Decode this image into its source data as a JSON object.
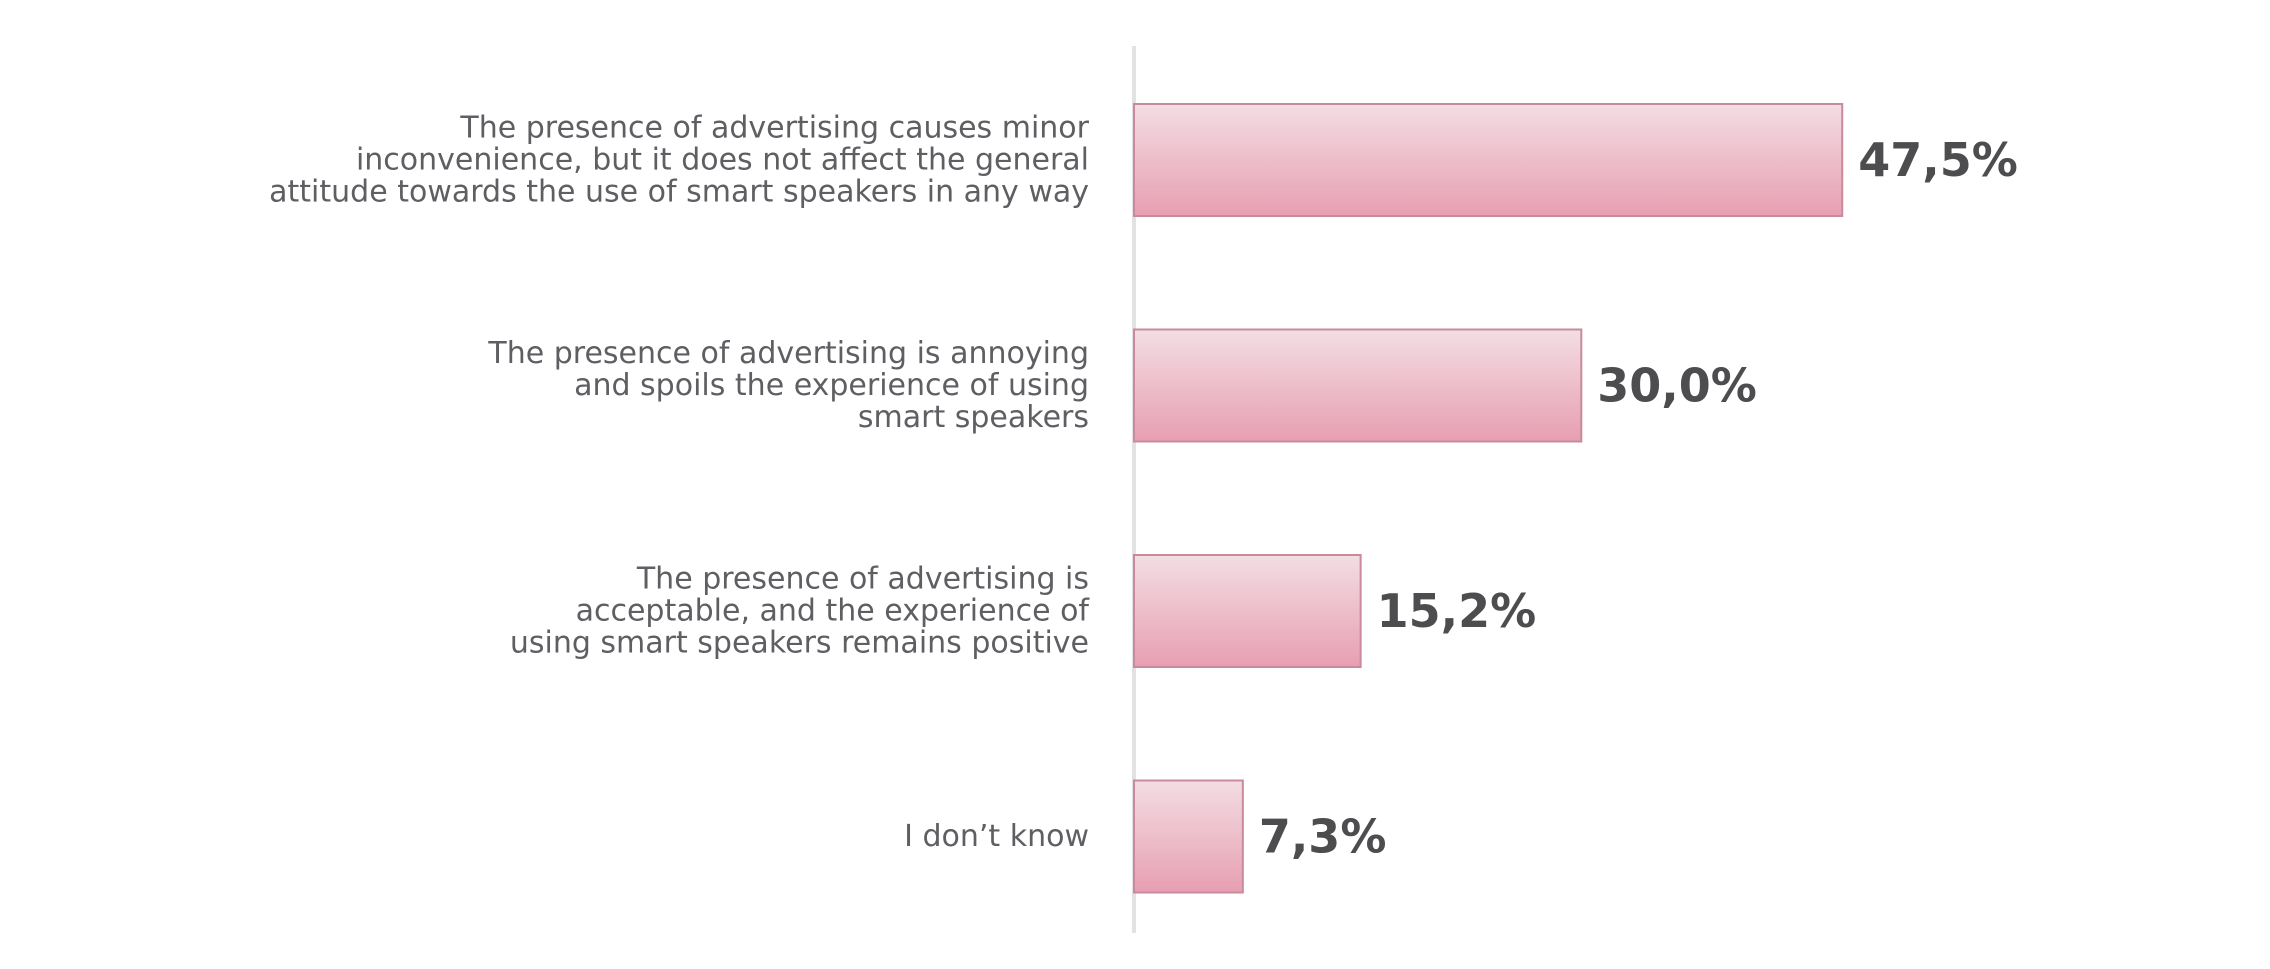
{
  "colors": {
    "bar_top": "#f3dde3",
    "bar_bottom": "#e79fb2",
    "bar_stroke": "#c98a9b",
    "axis": "#e2e2e2",
    "label_text": "#5f5f63",
    "value_text": "#4d4d4f"
  },
  "chart_data": {
    "type": "bar",
    "orientation": "horizontal",
    "categories": [
      "The presence of advertising causes minor inconvenience, but it does not affect the general attitude towards the use of smart speakers in any way",
      "The presence of advertising is annoying and spoils the experience of using smart speakers",
      "The presence of advertising is acceptable, and the experience of using  smart speakers remains positive",
      "I don’t know"
    ],
    "category_lines": [
      [
        "The presence of advertising causes minor",
        "inconvenience, but it does not affect the general",
        "attitude towards the use of smart speakers in any way"
      ],
      [
        "The presence of advertising is annoying",
        "and spoils the experience of using",
        "smart speakers"
      ],
      [
        "The presence of advertising is",
        "acceptable, and the experience of",
        "using  smart speakers remains positive"
      ],
      [
        "I don’t know"
      ]
    ],
    "values": [
      47.5,
      30.0,
      15.2,
      7.3
    ],
    "value_labels": [
      "47,5%",
      "30,0%",
      "15,2%",
      "7,3%"
    ],
    "xlim": [
      0,
      100
    ],
    "grid": false,
    "legend": "none",
    "title": "",
    "xlabel": "",
    "ylabel": ""
  }
}
